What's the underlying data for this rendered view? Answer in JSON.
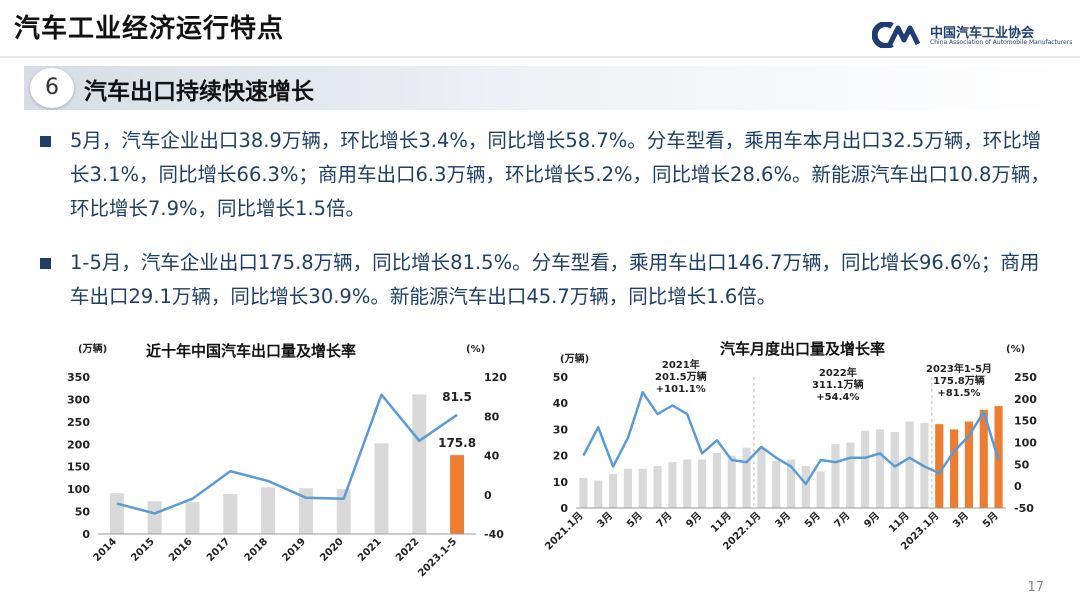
{
  "header": {
    "title": "汽车工业经济运行特点",
    "logo_cn": "中国汽车工业协会",
    "logo_en": "China Association of Automobile Manufacturers"
  },
  "section": {
    "number": "6",
    "title": "汽车出口持续快速增长"
  },
  "bullets": [
    "5月，汽车企业出口38.9万辆，环比增长3.4%，同比增长58.7%。分车型看，乘用车本月出口32.5万辆，环比增长3.1%，同比增长66.3%；商用车出口6.3万辆，环比增长5.2%，同比增长28.6%。新能源汽车出口10.8万辆，环比增长7.9%，同比增长1.5倍。",
    "1-5月，汽车企业出口175.8万辆，同比增长81.5%。分车型看，乘用车出口146.7万辆，同比增长96.6%；商用车出口29.1万辆，同比增长30.9%。新能源汽车出口45.7万辆，同比增长1.6倍。"
  ],
  "colors": {
    "bar": "#d9d9d9",
    "highlight": "#ed7d31",
    "line": "#5b9bd5",
    "text": "#1f3f66"
  },
  "chart_data": [
    {
      "type": "bar",
      "title": "近十年中国汽车出口量及增长率",
      "ylabel": "(万辆)",
      "y2label": "(%)",
      "categories": [
        "2014",
        "2015",
        "2016",
        "2017",
        "2018",
        "2019",
        "2020",
        "2021",
        "2022",
        "2023.1-5"
      ],
      "ylim": [
        0,
        350
      ],
      "yticks": [
        0,
        50,
        100,
        150,
        200,
        250,
        300,
        350
      ],
      "y2lim": [
        -40,
        120
      ],
      "y2ticks": [
        -40,
        0,
        40,
        80,
        120
      ],
      "highlight": [
        9
      ],
      "series": [
        {
          "name": "出口量",
          "type": "bar",
          "axis": "left",
          "values": [
            91,
            73,
            71,
            89,
            104,
            102,
            100,
            202,
            311,
            175.8
          ]
        },
        {
          "name": "增长率",
          "type": "line",
          "axis": "right",
          "values": [
            -9,
            -19,
            -4,
            24,
            14,
            -3,
            -4,
            102,
            55,
            81.5
          ]
        }
      ],
      "data_labels": [
        {
          "series": "出口量",
          "index": 9,
          "text": "175.8"
        },
        {
          "series": "增长率",
          "index": 9,
          "text": "81.5"
        }
      ]
    },
    {
      "type": "bar",
      "title": "汽车月度出口量及增长率",
      "ylabel": "(万辆)",
      "y2label": "(%)",
      "categories": [
        "2021.1",
        "2021.2",
        "2021.3",
        "2021.4",
        "2021.5",
        "2021.6",
        "2021.7",
        "2021.8",
        "2021.9",
        "2021.10",
        "2021.11",
        "2021.12",
        "2022.1",
        "2022.2",
        "2022.3",
        "2022.4",
        "2022.5",
        "2022.6",
        "2022.7",
        "2022.8",
        "2022.9",
        "2022.10",
        "2022.11",
        "2022.12",
        "2023.1",
        "2023.2",
        "2023.3",
        "2023.4",
        "2023.5"
      ],
      "tick_labels": [
        "2021.1月",
        "",
        "3月",
        "",
        "5月",
        "",
        "7月",
        "",
        "9月",
        "",
        "11月",
        "",
        "2022.1月",
        "",
        "3月",
        "",
        "5月",
        "",
        "7月",
        "",
        "9月",
        "",
        "11月",
        "",
        "2023.1月",
        "",
        "3月",
        "",
        "5月"
      ],
      "ylim": [
        0,
        50
      ],
      "yticks": [
        0,
        10,
        20,
        30,
        40,
        50
      ],
      "y2lim": [
        -50,
        250
      ],
      "y2ticks": [
        -50,
        0,
        50,
        100,
        150,
        200,
        250
      ],
      "highlight": [
        24,
        25,
        26,
        27,
        28
      ],
      "series": [
        {
          "name": "出口量",
          "type": "bar",
          "axis": "left",
          "values": [
            11.5,
            10.5,
            13,
            15,
            15,
            16,
            17.5,
            18.5,
            18.5,
            21,
            20,
            23,
            23,
            18,
            18.5,
            16,
            14,
            24.5,
            25,
            29.5,
            30,
            29,
            33,
            32.5,
            32,
            30,
            33,
            37.5,
            38.9
          ]
        },
        {
          "name": "增长率",
          "type": "line",
          "axis": "right",
          "values": [
            70,
            135,
            45,
            110,
            215,
            165,
            185,
            165,
            75,
            105,
            60,
            55,
            90,
            65,
            45,
            5,
            60,
            55,
            65,
            65,
            75,
            45,
            65,
            45,
            30,
            80,
            115,
            170,
            58.7
          ]
        }
      ],
      "annotations": [
        {
          "lines": [
            "2021年",
            "201.5万辆",
            "+101.1%"
          ]
        },
        {
          "lines": [
            "2022年",
            "311.1万辆",
            "+54.4%"
          ]
        },
        {
          "lines": [
            "2023年1-5月",
            "175.8万辆",
            "+81.5%"
          ]
        }
      ]
    }
  ],
  "footer": {
    "page_number": "17"
  }
}
